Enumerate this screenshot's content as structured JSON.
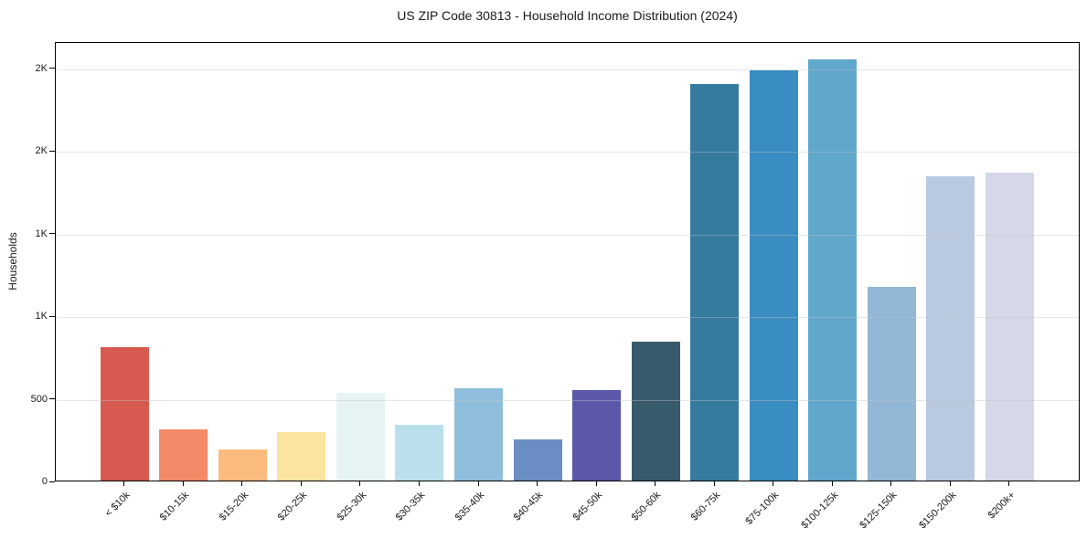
{
  "title": "US ZIP Code 30813 - Household Income Distribution (2024)",
  "chart_data": {
    "type": "bar",
    "title": "US ZIP Code 30813 - Household Income Distribution (2024)",
    "xlabel": "",
    "ylabel": "Households",
    "ylim": [
      0,
      2660
    ],
    "grid": true,
    "legend": "none",
    "gridline_values": [
      500,
      1000,
      1500,
      2000,
      2500
    ],
    "y_ticks": [
      {
        "value": 0,
        "label": "0"
      },
      {
        "value": 500,
        "label": "500"
      },
      {
        "value": 1000,
        "label": "1K"
      },
      {
        "value": 1500,
        "label": "1K"
      },
      {
        "value": 2000,
        "label": "2K"
      },
      {
        "value": 2500,
        "label": "2K"
      }
    ],
    "categories": [
      "< $10k",
      "$10-15k",
      "$15-20k",
      "$20-25k",
      "$25-30k",
      "$30-35k",
      "$35-40k",
      "$40-45k",
      "$45-50k",
      "$50-60k",
      "$60-75k",
      "$75-100k",
      "$100-125k",
      "$125-150k",
      "$150-200k",
      "$200k+"
    ],
    "values": [
      805,
      310,
      190,
      295,
      530,
      335,
      560,
      250,
      550,
      840,
      2400,
      2485,
      2550,
      1175,
      1840,
      1865
    ],
    "bar_colors": [
      "#d65a50",
      "#f58a68",
      "#fbbb7c",
      "#fde3a0",
      "#e6f3f5",
      "#bbdfec",
      "#8fbedd",
      "#6a8dc3",
      "#5c58a9",
      "#375b6c",
      "#357b9e",
      "#398dc2",
      "#60a7cc",
      "#92b7d7",
      "#b9c9e0",
      "#d5d8e7"
    ]
  },
  "colors": {
    "background": "#ffffff",
    "spine": "#000000",
    "gridline": "#eaeaea",
    "text": "#1a1a1a"
  }
}
